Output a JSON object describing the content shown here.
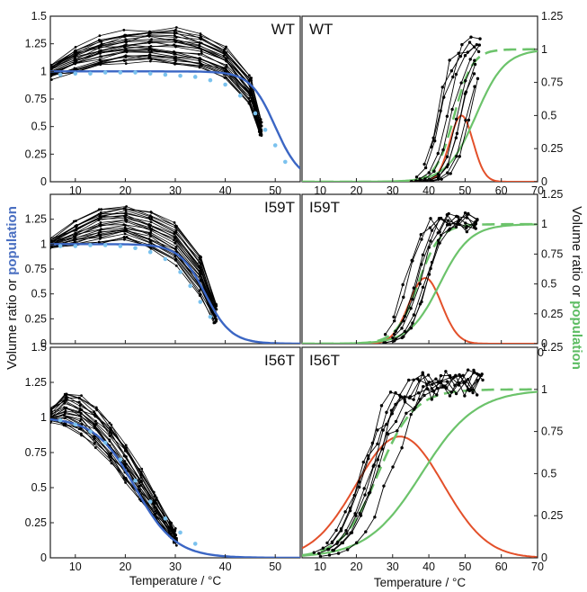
{
  "colors": {
    "blue_fit": "#3b66c4",
    "light_blue_points": "#7bc2ee",
    "green_fit": "#6cc36b",
    "red_fit": "#e3502a",
    "traces": "#000000"
  },
  "axes": {
    "left_ylabel_main": "Volume ratio or ",
    "left_ylabel_highlight": "population",
    "right_ylabel_main": "Volume ratio or ",
    "right_ylabel_highlight": "population",
    "xlabel_left": "Temperature / °C",
    "xlabel_right": "Temperature / °C"
  },
  "chart_data": [
    {
      "type": "line",
      "label": "WT",
      "position": "top-left",
      "xlim": [
        5,
        55
      ],
      "ylim": [
        0,
        1.5
      ],
      "xticks": [
        "10",
        "20",
        "30",
        "40",
        "50"
      ],
      "yticks": [
        "0",
        "0.25",
        "0.5",
        "0.75",
        "1",
        "1.25",
        "1.5"
      ],
      "trace_band": {
        "x": [
          5,
          10,
          15,
          20,
          25,
          30,
          35,
          40,
          45,
          47
        ],
        "low": [
          0.95,
          1.0,
          1.05,
          1.08,
          1.08,
          1.06,
          1.02,
          0.95,
          0.7,
          0.42
        ],
        "high": [
          1.05,
          1.2,
          1.3,
          1.35,
          1.38,
          1.38,
          1.33,
          1.22,
          0.95,
          0.55
        ],
        "count": 28
      },
      "fit_blue": {
        "midpoint": 50,
        "width": 2.5,
        "baseline": 1.0
      },
      "points_light_blue": {
        "x": [
          7,
          10,
          13,
          16,
          19,
          22,
          25,
          28,
          31,
          34,
          37,
          40,
          43,
          46,
          48,
          50,
          52
        ],
        "y": [
          0.97,
          0.98,
          0.98,
          0.99,
          0.99,
          0.99,
          0.98,
          0.97,
          0.96,
          0.95,
          0.92,
          0.88,
          0.78,
          0.62,
          0.47,
          0.33,
          0.18
        ]
      }
    },
    {
      "type": "line",
      "label": "WT",
      "position": "top-right",
      "xlim": [
        5,
        70
      ],
      "ylim": [
        0,
        1.25
      ],
      "xticks": [
        "10",
        "20",
        "30",
        "40",
        "50",
        "60",
        "70"
      ],
      "yticks": [
        "0",
        "0.25",
        "0.5",
        "0.75",
        "1",
        "1.25"
      ],
      "traces": {
        "x_start": 35,
        "x_end": 55,
        "final": 1.0,
        "count": 10
      },
      "fit_green": {
        "midpoint": 53,
        "width": 4.0
      },
      "fit_green_dashed": {
        "midpoint": 47,
        "width": 2.5
      },
      "fit_red": {
        "center": 49,
        "width": 3.2,
        "peak": 0.5
      }
    },
    {
      "type": "line",
      "label": "I59T",
      "position": "middle-left",
      "xlim": [
        5,
        55
      ],
      "ylim": [
        0,
        1.5
      ],
      "xticks": [
        "10",
        "20",
        "30",
        "40",
        "50"
      ],
      "yticks": [
        "0",
        "0.25",
        "0.5",
        "0.75",
        "1",
        "1.25"
      ],
      "trace_band": {
        "x": [
          5,
          10,
          15,
          20,
          25,
          30,
          35,
          38
        ],
        "low": [
          0.97,
          0.98,
          1.0,
          1.05,
          0.95,
          0.8,
          0.5,
          0.2
        ],
        "high": [
          1.05,
          1.22,
          1.35,
          1.38,
          1.32,
          1.2,
          0.9,
          0.4
        ],
        "count": 28
      },
      "fit_blue": {
        "midpoint": 36,
        "width": 2.6,
        "baseline": 1.0
      },
      "points_light_blue": {
        "x": [
          7,
          10,
          13,
          16,
          19,
          22,
          25,
          28,
          31,
          33,
          35,
          37
        ],
        "y": [
          0.98,
          0.98,
          0.99,
          0.99,
          0.98,
          0.96,
          0.92,
          0.85,
          0.72,
          0.58,
          0.42,
          0.27
        ]
      }
    },
    {
      "type": "line",
      "label": "I59T",
      "position": "middle-right",
      "xlim": [
        5,
        70
      ],
      "ylim": [
        0,
        1.25
      ],
      "xticks": [
        "10",
        "20",
        "30",
        "40",
        "50",
        "60",
        "70"
      ],
      "yticks": [
        "0",
        "0.25",
        "0.5",
        "0.75",
        "1",
        "1.25"
      ],
      "traces": {
        "x_start": 25,
        "x_end": 55,
        "final": 1.0,
        "count": 8
      },
      "fit_green": {
        "midpoint": 43,
        "width": 4.2
      },
      "fit_green_dashed": {
        "midpoint": 37,
        "width": 3.0
      },
      "fit_red": {
        "center": 39,
        "width": 4.5,
        "peak": 0.55
      }
    },
    {
      "type": "line",
      "label": "I56T",
      "position": "bottom-left",
      "xlim": [
        5,
        55
      ],
      "ylim": [
        0,
        1.5
      ],
      "xticks": [
        "10",
        "20",
        "30",
        "40",
        "50"
      ],
      "yticks": [
        "0",
        "0.25",
        "0.5",
        "0.75",
        "1",
        "1.25",
        "1.5"
      ],
      "trace_band": {
        "x": [
          5,
          8,
          11,
          14,
          17,
          20,
          23,
          26,
          29,
          30
        ],
        "low": [
          0.98,
          0.93,
          0.88,
          0.8,
          0.68,
          0.55,
          0.42,
          0.28,
          0.14,
          0.1
        ],
        "high": [
          1.05,
          1.18,
          1.15,
          1.07,
          0.95,
          0.8,
          0.62,
          0.45,
          0.25,
          0.2
        ],
        "count": 26
      },
      "fit_blue": {
        "midpoint": 22,
        "width": 4.0,
        "baseline": 1.0
      },
      "points_light_blue": {
        "x": [
          7,
          10,
          13,
          16,
          19,
          22,
          25,
          28,
          31,
          34
        ],
        "y": [
          0.98,
          0.95,
          0.9,
          0.82,
          0.7,
          0.55,
          0.4,
          0.28,
          0.18,
          0.1
        ]
      }
    },
    {
      "type": "line",
      "label": "I56T",
      "position": "bottom-right",
      "xlim": [
        5,
        70
      ],
      "ylim": [
        0,
        1.25
      ],
      "xticks": [
        "10",
        "20",
        "30",
        "40",
        "50",
        "60",
        "70"
      ],
      "yticks": [
        "0",
        "0.25",
        "0.5",
        "0.75",
        "1",
        "1.25"
      ],
      "traces": {
        "x_start": 8,
        "x_end": 55,
        "final": 1.0,
        "count": 8
      },
      "fit_green": {
        "midpoint": 38,
        "width": 7.5
      },
      "fit_green_dashed": {
        "midpoint": 26,
        "width": 5.0
      },
      "fit_red": {
        "center": 32,
        "width": 12.0,
        "peak": 0.72
      }
    }
  ]
}
